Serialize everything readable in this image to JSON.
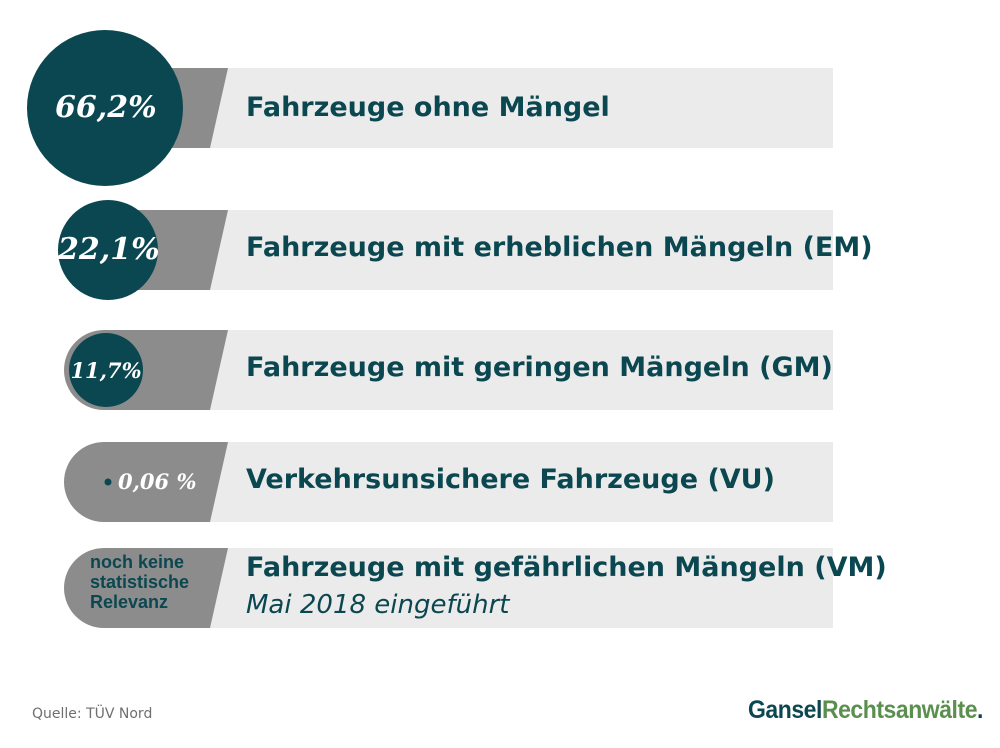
{
  "chart_data": {
    "type": "bar",
    "orientation": "horizontal",
    "categories": [
      "Fahrzeuge ohne Mängel",
      "Fahrzeuge mit erheblichen Mängeln (EM)",
      "Fahrzeuge mit geringen Mängeln (GM)",
      "Verkehrsunsichere Fahrzeuge (VU)",
      "Fahrzeuge mit gefährlichen Mängeln (VM)"
    ],
    "values": [
      66.2,
      22.1,
      11.7,
      0.06,
      null
    ],
    "value_labels": [
      "66,2%",
      "22,1%",
      "11,7%",
      "0,06 %",
      "noch keine statistische Relevanz"
    ],
    "sublabels": [
      "",
      "",
      "",
      "",
      "Mai 2018 eingeführt"
    ],
    "colors": {
      "circle": "#0b4750",
      "tab": "#8c8c8c",
      "bar": "#ebebeb",
      "label": "#0b4750"
    }
  },
  "footer": {
    "source": "Quelle: TÜV Nord",
    "brand_part1": "Gansel",
    "brand_part2": "Rechtsanwälte",
    "brand_part3": "."
  }
}
